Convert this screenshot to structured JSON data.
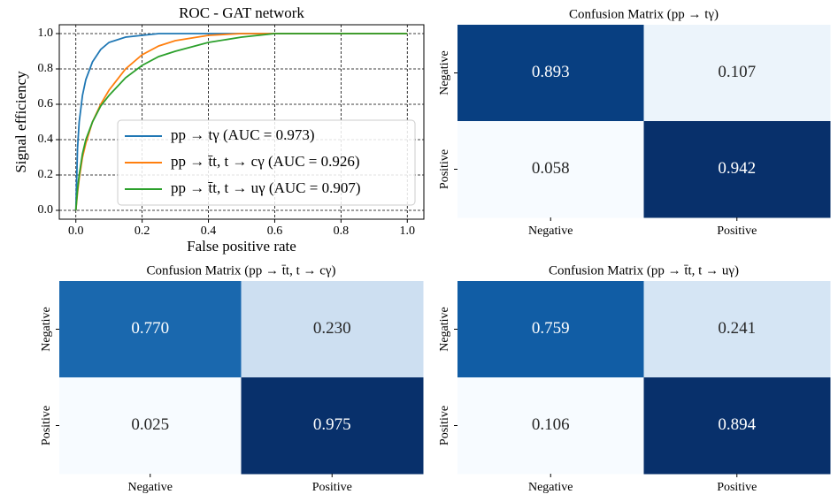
{
  "chart_data": [
    {
      "type": "line",
      "title": "ROC - GAT network",
      "xlabel": "False positive rate",
      "ylabel": "Signal efficiency",
      "x": [
        0,
        0.005,
        0.01,
        0.02,
        0.03,
        0.05,
        0.075,
        0.1,
        0.15,
        0.2,
        0.25,
        0.3,
        0.4,
        0.5,
        0.6,
        0.8,
        1.0
      ],
      "series": [
        {
          "name": "pp → tγ (AUC = 0.973)",
          "color": "#1f77b4",
          "values": [
            0,
            0.35,
            0.5,
            0.65,
            0.74,
            0.84,
            0.91,
            0.95,
            0.98,
            0.99,
            1.0,
            1.0,
            1.0,
            1.0,
            1.0,
            1.0,
            1.0
          ]
        },
        {
          "name": "pp → t̄t, t → cγ (AUC = 0.926)",
          "color": "#ff7f0e",
          "values": [
            0,
            0.1,
            0.18,
            0.3,
            0.38,
            0.5,
            0.6,
            0.68,
            0.8,
            0.88,
            0.93,
            0.96,
            0.99,
            1.0,
            1.0,
            1.0,
            1.0
          ]
        },
        {
          "name": "pp → t̄t, t → uγ (AUC = 0.907)",
          "color": "#2ca02c",
          "values": [
            0,
            0.12,
            0.2,
            0.32,
            0.4,
            0.5,
            0.59,
            0.65,
            0.75,
            0.82,
            0.87,
            0.9,
            0.95,
            0.98,
            1.0,
            1.0,
            1.0
          ]
        }
      ],
      "xlim": [
        -0.05,
        1.05
      ],
      "ylim": [
        -0.05,
        1.05
      ],
      "xticks": [
        {
          "value": 0,
          "label": "0.0"
        },
        0.2,
        0.4,
        0.6,
        0.8,
        {
          "value": 1,
          "label": "1.0"
        }
      ],
      "yticks": [
        {
          "value": 0,
          "label": "0.0"
        },
        0.2,
        0.4,
        0.6,
        0.8,
        {
          "value": 1,
          "label": "1.0"
        }
      ],
      "grid": true,
      "legend": "lower right"
    },
    {
      "type": "heatmap",
      "title": "Confusion Matrix (pp → tγ)",
      "x_categories": [
        "Negative",
        "Positive"
      ],
      "y_categories": [
        "Negative",
        "Positive"
      ],
      "values": [
        [
          0.893,
          0.107
        ],
        [
          0.058,
          0.942
        ]
      ],
      "value_labels": [
        [
          "0.893",
          "0.107"
        ],
        [
          "0.058",
          "0.942"
        ]
      ],
      "colormap": "Blues"
    },
    {
      "type": "heatmap",
      "title": "Confusion Matrix (pp → t̄t, t → cγ)",
      "x_categories": [
        "Negative",
        "Positive"
      ],
      "y_categories": [
        "Negative",
        "Positive"
      ],
      "values": [
        [
          0.77,
          0.23
        ],
        [
          0.025,
          0.975
        ]
      ],
      "value_labels": [
        [
          "0.770",
          "0.230"
        ],
        [
          "0.025",
          "0.975"
        ]
      ],
      "colormap": "Blues"
    },
    {
      "type": "heatmap",
      "title": "Confusion Matrix (pp → t̄t, t → uγ)",
      "x_categories": [
        "Negative",
        "Positive"
      ],
      "y_categories": [
        "Negative",
        "Positive"
      ],
      "values": [
        [
          0.759,
          0.241
        ],
        [
          0.106,
          0.894
        ]
      ],
      "value_labels": [
        [
          "0.759",
          "0.241"
        ],
        [
          "0.106",
          "0.894"
        ]
      ],
      "colormap": "Blues"
    }
  ]
}
